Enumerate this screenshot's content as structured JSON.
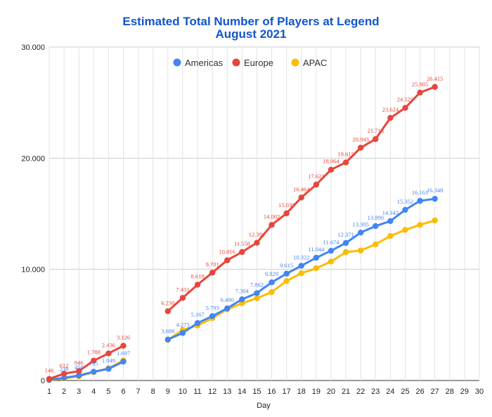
{
  "chart_data": {
    "type": "line",
    "title": "Estimated Total Number of Players at Legend",
    "subtitle": "August 2021",
    "xlabel": "Day",
    "ylabel": "",
    "xlim": [
      1,
      30
    ],
    "ylim": [
      0,
      30000
    ],
    "x_ticks": [
      "1",
      "2",
      "3",
      "4",
      "5",
      "6",
      "7",
      "8",
      "9",
      "10",
      "11",
      "12",
      "13",
      "14",
      "15",
      "16",
      "17",
      "18",
      "19",
      "20",
      "21",
      "22",
      "23",
      "24",
      "25",
      "26",
      "27",
      "28",
      "29",
      "30"
    ],
    "y_ticks": [
      {
        "value": 0,
        "label": "0"
      },
      {
        "value": 10000,
        "label": "10.000"
      },
      {
        "value": 20000,
        "label": "20.000"
      },
      {
        "value": 30000,
        "label": "30.000"
      }
    ],
    "grid": true,
    "legend_position": "top",
    "series": [
      {
        "name": "Americas",
        "color": "#4285f4",
        "points": [
          [
            1,
            60
          ],
          [
            2,
            239
          ],
          [
            3,
            450
          ],
          [
            4,
            785
          ],
          [
            5,
            1049
          ],
          [
            6,
            1697
          ],
          [
            9,
            3688
          ],
          [
            10,
            4273
          ],
          [
            11,
            5167
          ],
          [
            12,
            5793
          ],
          [
            13,
            6490
          ],
          [
            14,
            7304
          ],
          [
            15,
            7862
          ],
          [
            16,
            8829
          ],
          [
            17,
            9615
          ],
          [
            18,
            10322
          ],
          [
            19,
            11044
          ],
          [
            20,
            11674
          ],
          [
            21,
            12371
          ],
          [
            22,
            13305
          ],
          [
            23,
            13890
          ],
          [
            24,
            14343
          ],
          [
            25,
            15352
          ],
          [
            26,
            16161
          ],
          [
            27,
            16348
          ]
        ],
        "labels": [
          "",
          "239",
          "450",
          "785",
          "1.049",
          "1.697",
          "3.688",
          "4.273",
          "5.167",
          "5.793",
          "6.490",
          "7.304",
          "7.862",
          "8.829",
          "9.615",
          "10.322",
          "11.044",
          "11.674",
          "12.371",
          "13.305",
          "13.890",
          "14.343",
          "15.352",
          "16.161",
          "16.348"
        ]
      },
      {
        "name": "Europe",
        "color": "#e8453c",
        "points": [
          [
            1,
            146
          ],
          [
            2,
            612
          ],
          [
            3,
            846
          ],
          [
            4,
            1788
          ],
          [
            5,
            2436
          ],
          [
            6,
            3126
          ],
          [
            9,
            6230
          ],
          [
            10,
            7431
          ],
          [
            11,
            8618
          ],
          [
            12,
            9701
          ],
          [
            13,
            10816
          ],
          [
            14,
            11558
          ],
          [
            15,
            12391
          ],
          [
            16,
            14002
          ],
          [
            17,
            15039
          ],
          [
            18,
            16464
          ],
          [
            19,
            17621
          ],
          [
            20,
            18964
          ],
          [
            21,
            19615
          ],
          [
            22,
            20943
          ],
          [
            23,
            21718
          ],
          [
            24,
            23624
          ],
          [
            25,
            24525
          ],
          [
            26,
            25905
          ],
          [
            27,
            26415
          ]
        ],
        "labels": [
          "146",
          "612",
          "846",
          "1.788",
          "2.436",
          "3.126",
          "6.230",
          "7.431",
          "8.618",
          "9.701",
          "10.816",
          "11.558",
          "12.391",
          "14.002",
          "15.039",
          "16.464",
          "17.621",
          "18.964",
          "19.615",
          "20.943",
          "21.718",
          "23.624",
          "24.525",
          "25.905",
          "26.415"
        ]
      },
      {
        "name": "APAC",
        "color": "#fbbc04",
        "points": [
          [
            1,
            40
          ],
          [
            2,
            180
          ],
          [
            3,
            380
          ],
          [
            4,
            750
          ],
          [
            5,
            1100
          ],
          [
            6,
            1800
          ],
          [
            9,
            3650
          ],
          [
            10,
            4550
          ],
          [
            11,
            4950
          ],
          [
            12,
            5600
          ],
          [
            13,
            6400
          ],
          [
            14,
            6950
          ],
          [
            15,
            7400
          ],
          [
            16,
            7950
          ],
          [
            17,
            8950
          ],
          [
            18,
            9650
          ],
          [
            19,
            10100
          ],
          [
            20,
            10700
          ],
          [
            21,
            11550
          ],
          [
            22,
            11700
          ],
          [
            23,
            12250
          ],
          [
            24,
            13000
          ],
          [
            25,
            13550
          ],
          [
            26,
            14000
          ],
          [
            27,
            14400
          ]
        ],
        "labels": []
      }
    ]
  }
}
